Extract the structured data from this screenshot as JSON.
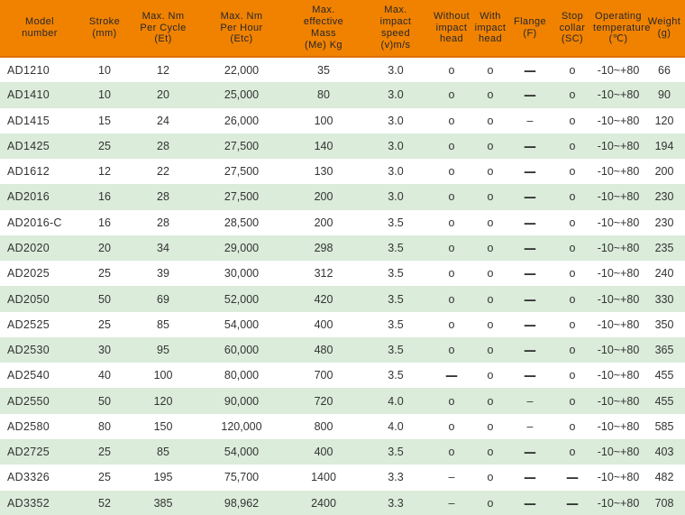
{
  "table": {
    "columns": [
      {
        "id": "model_number",
        "lines": [
          "Model",
          "number"
        ]
      },
      {
        "id": "stroke_mm",
        "lines": [
          "Stroke",
          "(mm)"
        ]
      },
      {
        "id": "max_nm_per_cycle",
        "lines": [
          "Max. Nm",
          "Per Cycle",
          "(Et)"
        ]
      },
      {
        "id": "max_nm_per_hour",
        "lines": [
          "Max. Nm",
          "Per Hour",
          "(Etc)"
        ]
      },
      {
        "id": "max_effective_mass",
        "lines": [
          "Max.",
          "effective",
          "Mass",
          "(Me) Kg"
        ]
      },
      {
        "id": "max_impact_speed",
        "lines": [
          "Max.",
          "impact",
          "speed",
          "(v)m/s"
        ]
      },
      {
        "id": "without_impact_head",
        "lines": [
          "Without",
          "impact",
          "head"
        ]
      },
      {
        "id": "with_impact_head",
        "lines": [
          "With",
          "impact",
          "head"
        ]
      },
      {
        "id": "flange_f",
        "lines": [
          "Flange",
          "(F)"
        ]
      },
      {
        "id": "stop_collar_sc",
        "lines": [
          "Stop",
          "collar",
          "(SC)"
        ]
      },
      {
        "id": "operating_temperature",
        "lines": [
          "Operating",
          "temperature",
          "(℃)"
        ]
      },
      {
        "id": "weight_g",
        "lines": [
          "Weight",
          "(g)"
        ]
      }
    ],
    "rows": [
      [
        "AD1210",
        "10",
        "12",
        "22,000",
        "35",
        "3.0",
        "o",
        "o",
        "—",
        "o",
        "-10~+80",
        "66"
      ],
      [
        "AD1410",
        "10",
        "20",
        "25,000",
        "80",
        "3.0",
        "o",
        "o",
        "—",
        "o",
        "-10~+80",
        "90"
      ],
      [
        "AD1415",
        "15",
        "24",
        "26,000",
        "100",
        "3.0",
        "o",
        "o",
        "–",
        "o",
        "-10~+80",
        "120"
      ],
      [
        "AD1425",
        "25",
        "28",
        "27,500",
        "140",
        "3.0",
        "o",
        "o",
        "—",
        "o",
        "-10~+80",
        "194"
      ],
      [
        "AD1612",
        "12",
        "22",
        "27,500",
        "130",
        "3.0",
        "o",
        "o",
        "—",
        "o",
        "-10~+80",
        "200"
      ],
      [
        "AD2016",
        "16",
        "28",
        "27,500",
        "200",
        "3.0",
        "o",
        "o",
        "—",
        "o",
        "-10~+80",
        "230"
      ],
      [
        "AD2016-C",
        "16",
        "28",
        "28,500",
        "200",
        "3.5",
        "o",
        "o",
        "—",
        "o",
        "-10~+80",
        "230"
      ],
      [
        "AD2020",
        "20",
        "34",
        "29,000",
        "298",
        "3.5",
        "o",
        "o",
        "—",
        "o",
        "-10~+80",
        "235"
      ],
      [
        "AD2025",
        "25",
        "39",
        "30,000",
        "312",
        "3.5",
        "o",
        "o",
        "—",
        "o",
        "-10~+80",
        "240"
      ],
      [
        "AD2050",
        "50",
        "69",
        "52,000",
        "420",
        "3.5",
        "o",
        "o",
        "—",
        "o",
        "-10~+80",
        "330"
      ],
      [
        "AD2525",
        "25",
        "85",
        "54,000",
        "400",
        "3.5",
        "o",
        "o",
        "—",
        "o",
        "-10~+80",
        "350"
      ],
      [
        "AD2530",
        "30",
        "95",
        "60,000",
        "480",
        "3.5",
        "o",
        "o",
        "—",
        "o",
        "-10~+80",
        "365"
      ],
      [
        "AD2540",
        "40",
        "100",
        "80,000",
        "700",
        "3.5",
        "—",
        "o",
        "—",
        "o",
        "-10~+80",
        "455"
      ],
      [
        "AD2550",
        "50",
        "120",
        "90,000",
        "720",
        "4.0",
        "o",
        "o",
        "–",
        "o",
        "-10~+80",
        "455"
      ],
      [
        "AD2580",
        "80",
        "150",
        "120,000",
        "800",
        "4.0",
        "o",
        "o",
        "–",
        "o",
        "-10~+80",
        "585"
      ],
      [
        "AD2725",
        "25",
        "85",
        "54,000",
        "400",
        "3.5",
        "o",
        "o",
        "—",
        "o",
        "-10~+80",
        "403"
      ],
      [
        "AD3326",
        "25",
        "195",
        "75,700",
        "1400",
        "3.3",
        "–",
        "o",
        "—",
        "—",
        "-10~+80",
        "482"
      ],
      [
        "AD3352",
        "52",
        "385",
        "98,962",
        "2400",
        "3.3",
        "–",
        "o",
        "—",
        "—",
        "-10~+80",
        "708"
      ]
    ]
  },
  "colors": {
    "header_bg": "#F08200",
    "header_border": "#DD6F00",
    "row_alt_bg": "#DBECDA",
    "header_text": "#26262E",
    "body_text": "#333333"
  }
}
